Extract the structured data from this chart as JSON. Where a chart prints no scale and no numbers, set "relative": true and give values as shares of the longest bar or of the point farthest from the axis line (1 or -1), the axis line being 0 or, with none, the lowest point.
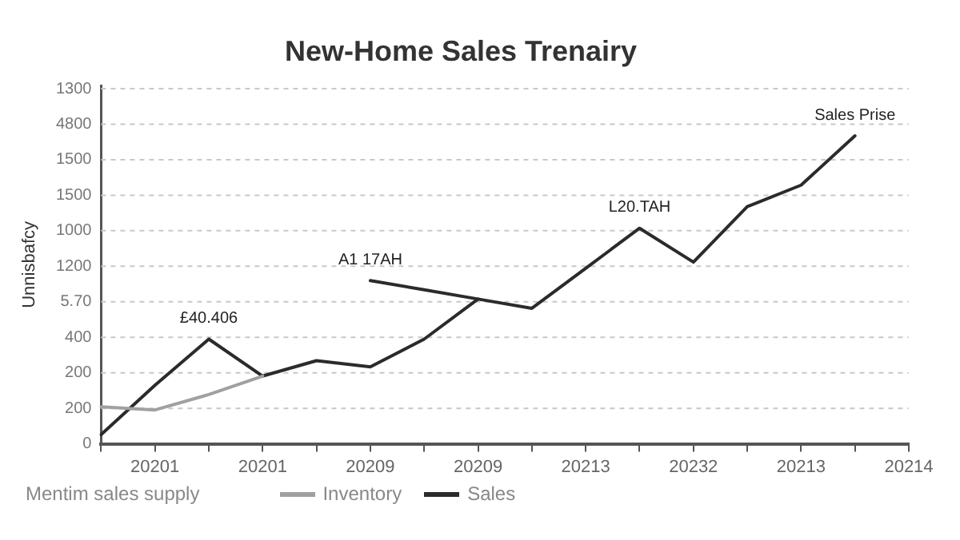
{
  "chart_data": {
    "type": "line",
    "title": "New-Home Sales Trenairy",
    "ylabel": "Unnisbafcy",
    "legend_title": "Mentim sales supply",
    "relative": true,
    "categories": [
      null,
      "20201",
      null,
      "20201",
      null,
      "20209",
      null,
      "20209",
      null,
      "20213",
      null,
      "20232",
      null,
      "20213",
      null,
      "20214"
    ],
    "grid": "y",
    "legend": "bottom left",
    "series": [
      {
        "name": "Inventory",
        "color": "#a0a0a0",
        "values": [
          0.12,
          0.11,
          0.16,
          0.22,
          null,
          null,
          null,
          null,
          null,
          null,
          null,
          null,
          null,
          null,
          null,
          null
        ]
      },
      {
        "name": "Sales",
        "color": "#2b2b2b",
        "values": [
          0.03,
          0.19,
          0.34,
          0.22,
          0.27,
          0.25,
          0.34,
          0.47,
          0.44,
          0.57,
          0.7,
          0.59,
          0.77,
          0.84,
          1,
          null
        ]
      },
      {
        "color": "#2b2b2b",
        "values": [
          null,
          null,
          null,
          null,
          null,
          0.53,
          0.5,
          0.47,
          null,
          null,
          null,
          null,
          null,
          null,
          null,
          null
        ]
      }
    ],
    "annotations": [
      "0",
      "200",
      "200",
      "400",
      "5.70",
      "1200",
      "1000",
      "1500",
      "1500",
      "4800",
      "1300",
      {
        "text": "£40.406",
        "y": 0.34
      },
      {
        "text": "A1 17AH",
        "y": 0.53
      },
      {
        "text": "L20.TAH",
        "y": 0.7
      },
      {
        "text": "Sales Prise",
        "y": 1
      }
    ]
  }
}
